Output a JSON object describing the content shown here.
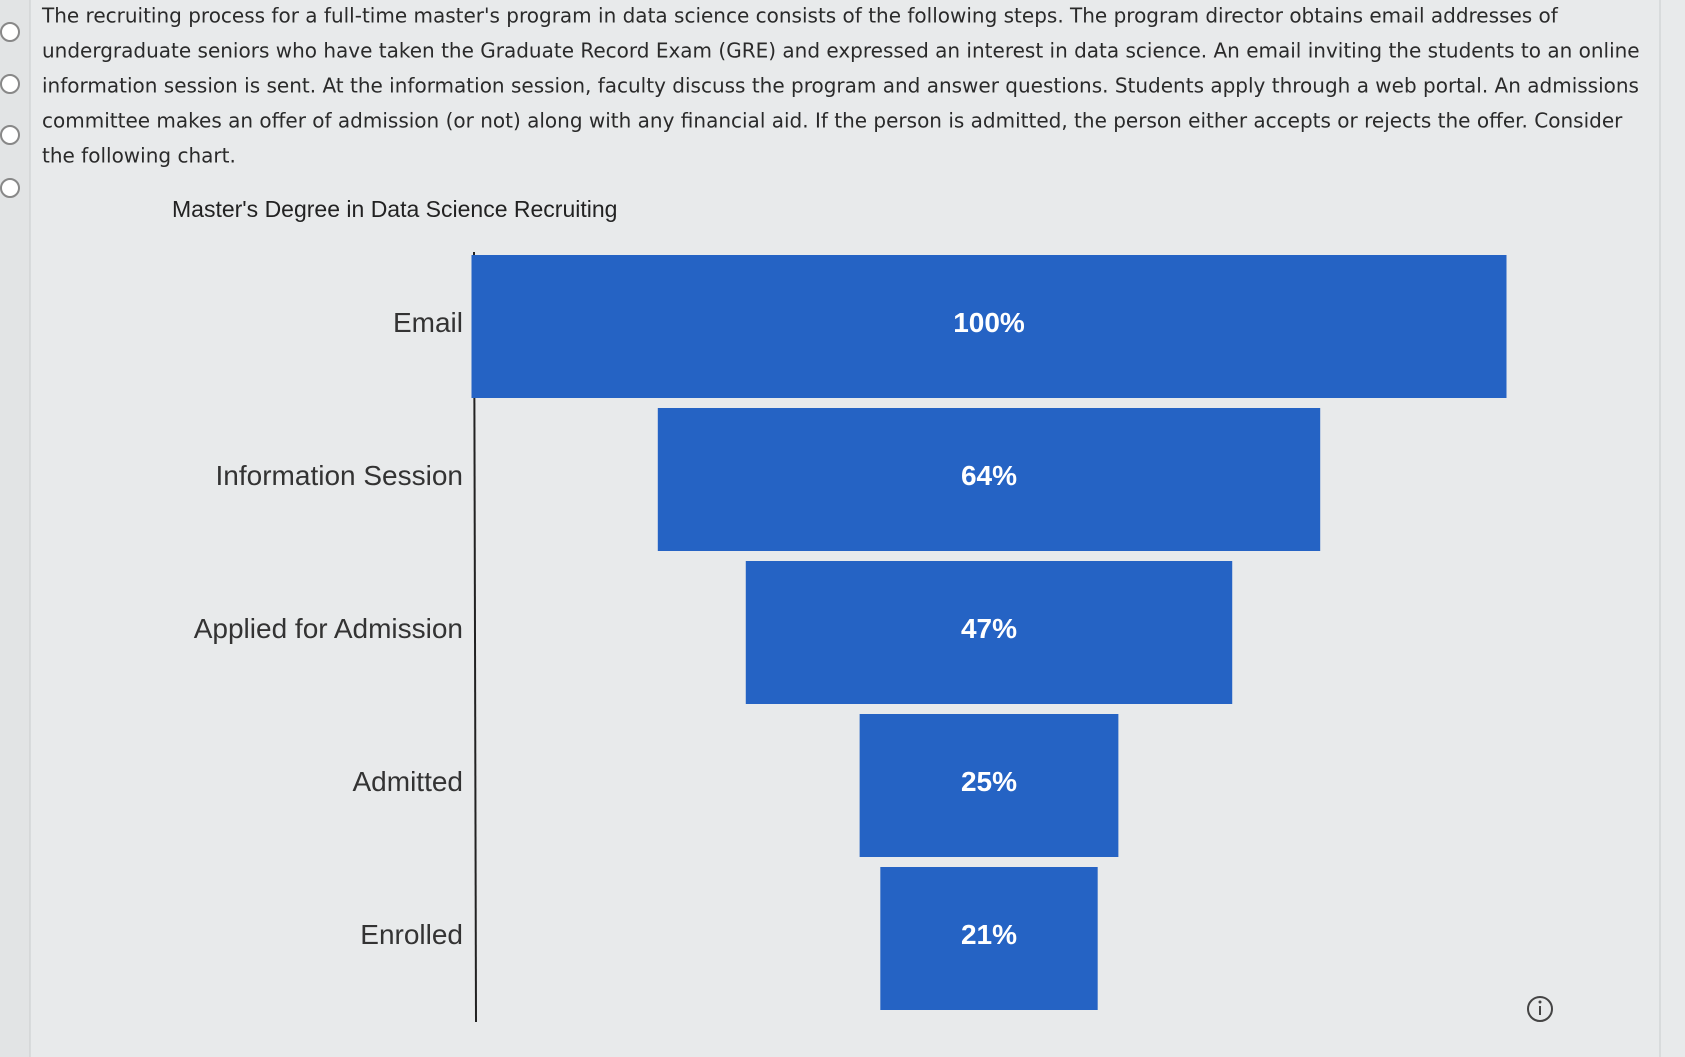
{
  "question": {
    "lines": [
      "The recruiting process for a full-time master's program in data science consists of the following steps. The program director obtains email addresses of",
      "undergraduate seniors who have taken the Graduate Record Exam (GRE) and expressed an interest in data science. An email inviting the students to an online",
      "information session is sent. At the information session, faculty discuss the program and answer questions. Students apply through a web portal. An admissions",
      "committee makes an offer of admission (or not) along with any financial aid. If the person is admitted, the person either accepts or rejects the offer. Consider",
      "the following chart."
    ]
  },
  "chart_data": {
    "type": "funnel",
    "title": "Master's Degree in Data Science Recruiting",
    "categories": [
      "Email",
      "Information Session",
      "Applied for Admission",
      "Admitted",
      "Enrolled"
    ],
    "values": [
      100,
      64,
      47,
      25,
      21
    ],
    "value_labels": [
      "100%",
      "64%",
      "47%",
      "25%",
      "21%"
    ],
    "color": "#2563c4"
  }
}
